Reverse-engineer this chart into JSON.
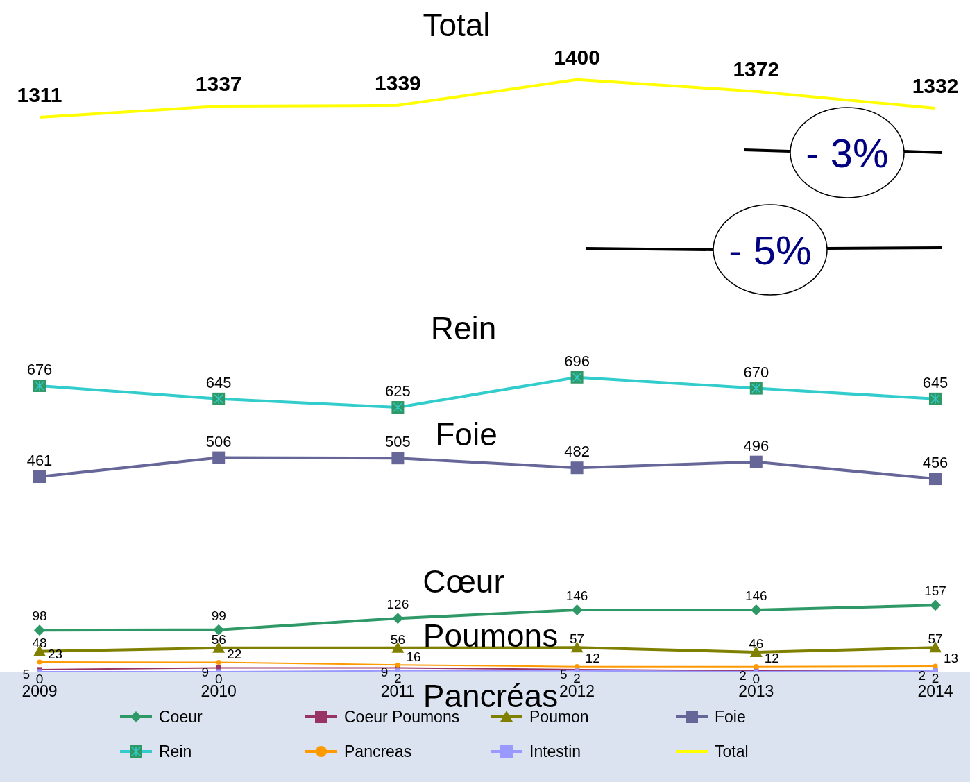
{
  "chart_data": {
    "type": "line",
    "categories": [
      "2009",
      "2010",
      "2011",
      "2012",
      "2013",
      "2014"
    ],
    "series": [
      {
        "name": "Coeur",
        "color": "#2e9966",
        "marker": "diamond",
        "values": [
          98,
          99,
          126,
          146,
          146,
          157
        ]
      },
      {
        "name": "Coeur Poumons",
        "color": "#993366",
        "marker": "square",
        "values": [
          5,
          9,
          9,
          5,
          2,
          2
        ]
      },
      {
        "name": "Poumon",
        "color": "#808000",
        "marker": "triangle",
        "values": [
          48,
          56,
          56,
          57,
          46,
          57
        ]
      },
      {
        "name": "Foie",
        "color": "#666699",
        "marker": "square",
        "values": [
          461,
          506,
          505,
          482,
          496,
          456
        ]
      },
      {
        "name": "Rein",
        "color": "#33cccc",
        "marker": "cross",
        "values": [
          676,
          645,
          625,
          696,
          670,
          645
        ]
      },
      {
        "name": "Pancreas",
        "color": "#ff9900",
        "marker": "circle",
        "values": [
          23,
          22,
          16,
          12,
          12,
          13
        ]
      },
      {
        "name": "Intestin",
        "color": "#9999ff",
        "marker": "square",
        "values": [
          0,
          0,
          2,
          2,
          0,
          2
        ]
      },
      {
        "name": "Total",
        "color": "#ffff00",
        "marker": "none",
        "values": [
          1311,
          1337,
          1339,
          1400,
          1372,
          1332
        ]
      }
    ],
    "annotations": [
      "Total",
      "Rein",
      "Foie",
      "Cœur",
      "Poumons",
      "Pancréas",
      "- 3%",
      "- 5%"
    ],
    "data_labels": true,
    "legend": "bottom",
    "grid": false,
    "tick_labels": "x"
  }
}
